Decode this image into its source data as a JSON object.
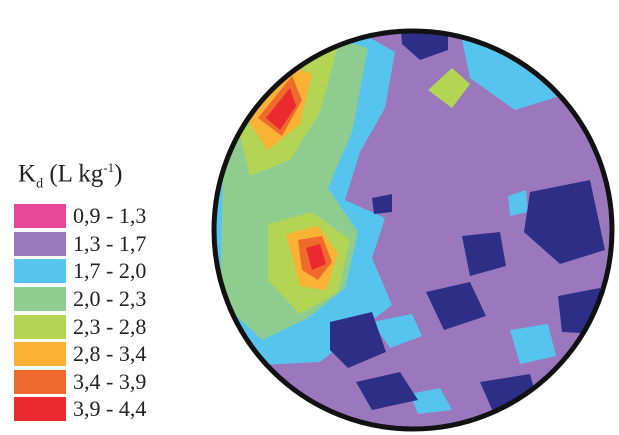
{
  "legend": {
    "title_main": "K",
    "title_sub": "d",
    "title_unit_prefix": "(L kg",
    "title_unit_exp": "-1",
    "title_unit_suffix": ")",
    "classes": [
      {
        "range": "0,9 - 1,3",
        "color": "#e8479a"
      },
      {
        "range": "1,3 - 1,7",
        "color": "#9b78bd"
      },
      {
        "range": "1,7 - 2,0",
        "color": "#55c4ee"
      },
      {
        "range": "2,0 - 2,3",
        "color": "#8fcc90"
      },
      {
        "range": "2,3 - 2,8",
        "color": "#b4d454"
      },
      {
        "range": "2,8 - 3,4",
        "color": "#f9b233"
      },
      {
        "range": "3,4 - 3,9",
        "color": "#ef6a2c"
      },
      {
        "range": "3,9 - 4,4",
        "color": "#ea2a2e"
      }
    ]
  },
  "map": {
    "outside_dark_color": "#2d2f86",
    "outline_color": "#111111"
  }
}
